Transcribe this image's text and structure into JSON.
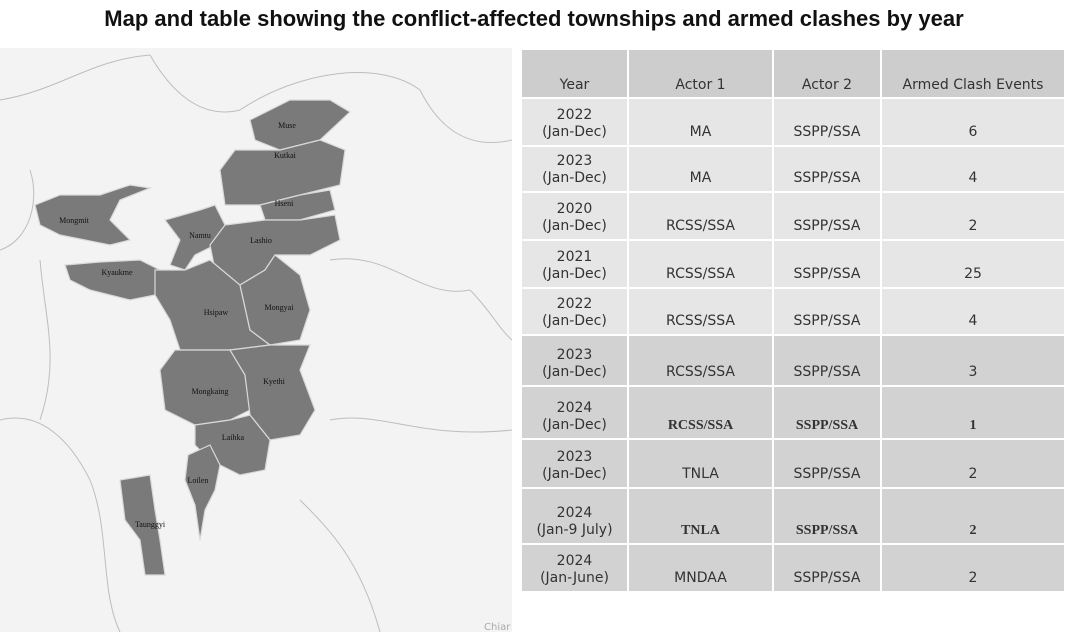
{
  "title": "Map and table showing the conflict-affected townships and armed clashes by year",
  "map": {
    "labels": [
      "Muse",
      "Kutkai",
      "Hseni",
      "Mongmit",
      "Namtu",
      "Lashio",
      "Kyaukme",
      "Hsipaw",
      "Mongyai",
      "Mongkaing",
      "Kyethi",
      "Laihka",
      "Loilen",
      "Taunggyi"
    ],
    "attribution": "Chiar"
  },
  "table": {
    "header": [
      "Year",
      "Actor 1",
      "Actor 2",
      "Armed Clash Events"
    ],
    "rows": [
      {
        "year": "2022",
        "period": "(Jan-Dec)",
        "actor1": "MA",
        "actor2": "SSPP/SSA",
        "events": 6
      },
      {
        "year": "2023",
        "period": "(Jan-Dec)",
        "actor1": "MA",
        "actor2": "SSPP/SSA",
        "events": 4
      },
      {
        "year": "2020",
        "period": "(Jan-Dec)",
        "actor1": "RCSS/SSA",
        "actor2": "SSPP/SSA",
        "events": 2
      },
      {
        "year": "2021",
        "period": "(Jan-Dec)",
        "actor1": "RCSS/SSA",
        "actor2": "SSPP/SSA",
        "events": 25
      },
      {
        "year": "2022",
        "period": "(Jan-Dec)",
        "actor1": "RCSS/SSA",
        "actor2": "SSPP/SSA",
        "events": 4
      },
      {
        "year": "2023",
        "period": "(Jan-Dec)",
        "actor1": "RCSS/SSA",
        "actor2": "SSPP/SSA",
        "events": 3
      },
      {
        "year": "2024",
        "period": "(Jan-Dec)",
        "actor1": "RCSS/SSA",
        "actor2": "SSPP/SSA",
        "events": 1
      },
      {
        "year": "2023",
        "period": "(Jan-Dec)",
        "actor1": "TNLA",
        "actor2": "SSPP/SSA",
        "events": 2
      },
      {
        "year": "2024",
        "period": "(Jan-9 July)",
        "actor1": "TNLA",
        "actor2": "SSPP/SSA",
        "events": 2
      },
      {
        "year": "2024",
        "period": "(Jan-June)",
        "actor1": "MNDAA",
        "actor2": "SSPP/SSA",
        "events": 2
      }
    ]
  }
}
